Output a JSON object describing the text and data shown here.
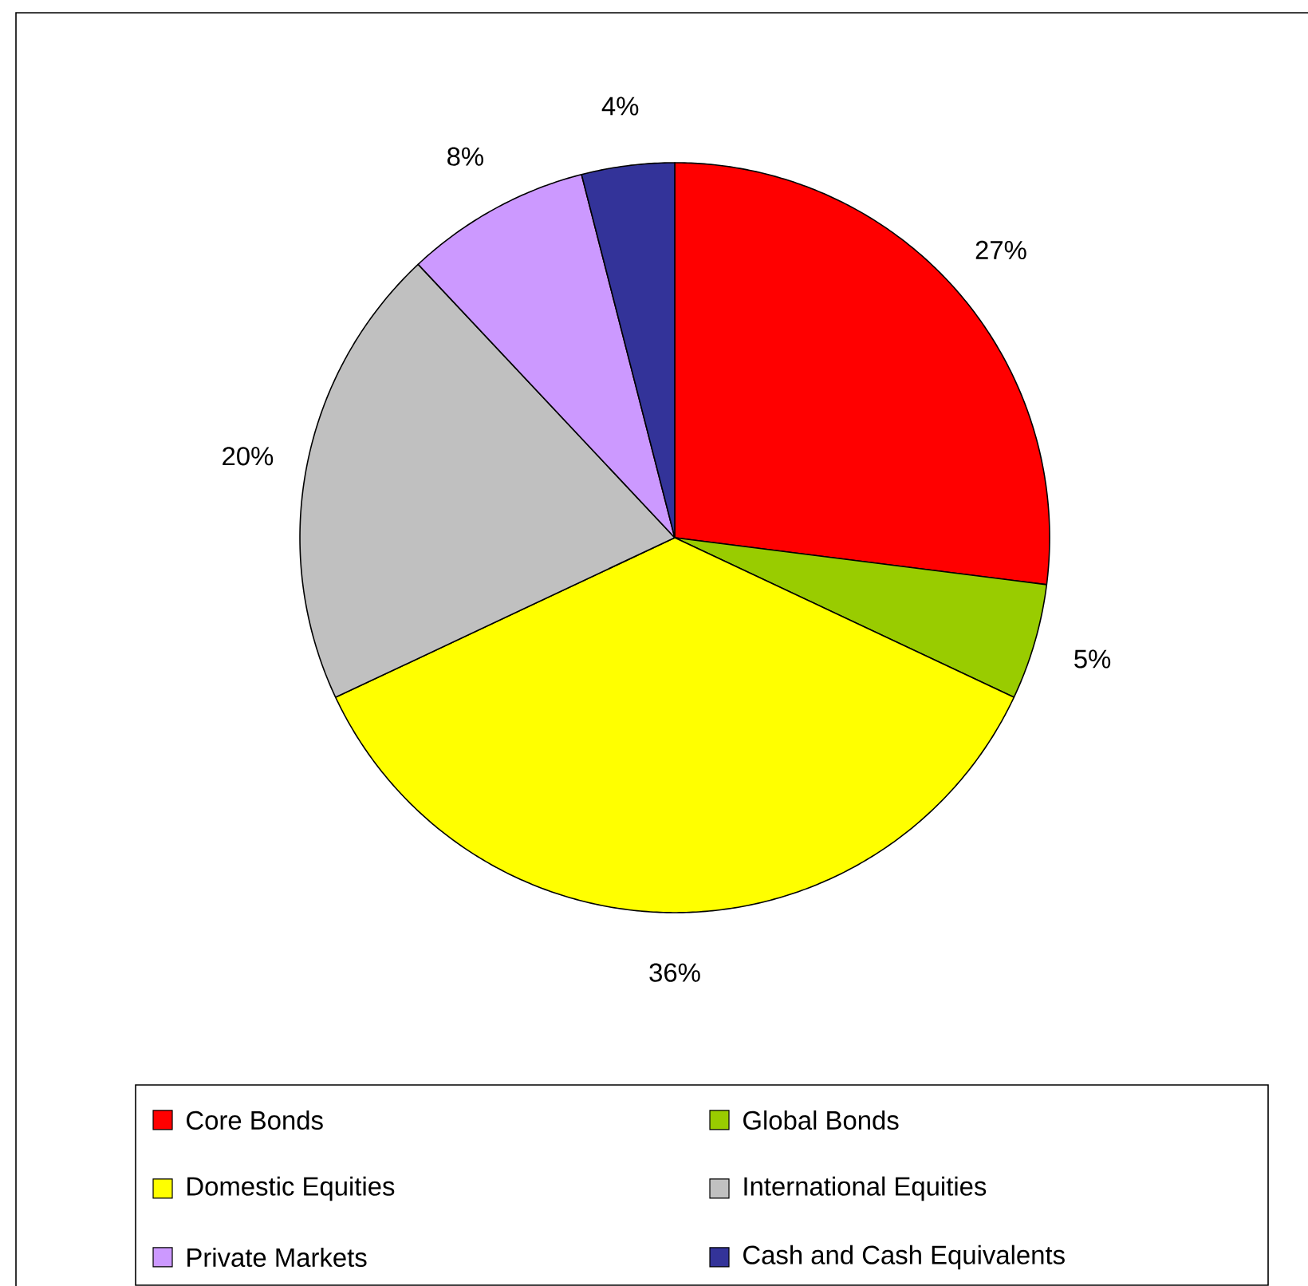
{
  "chart_data": {
    "type": "pie",
    "categories": [
      "Core Bonds",
      "Global Bonds",
      "Domestic Equities",
      "International Equities",
      "Private Markets",
      "Cash and Cash Equivalents"
    ],
    "values": [
      27,
      5,
      36,
      20,
      8,
      4
    ],
    "value_labels": [
      "27%",
      "5%",
      "36%",
      "20%",
      "8%",
      "4%"
    ],
    "colors": [
      "#ff0000",
      "#99cc00",
      "#ffff00",
      "#c0c0c0",
      "#cc99ff",
      "#333399"
    ],
    "legend": "bottom"
  }
}
